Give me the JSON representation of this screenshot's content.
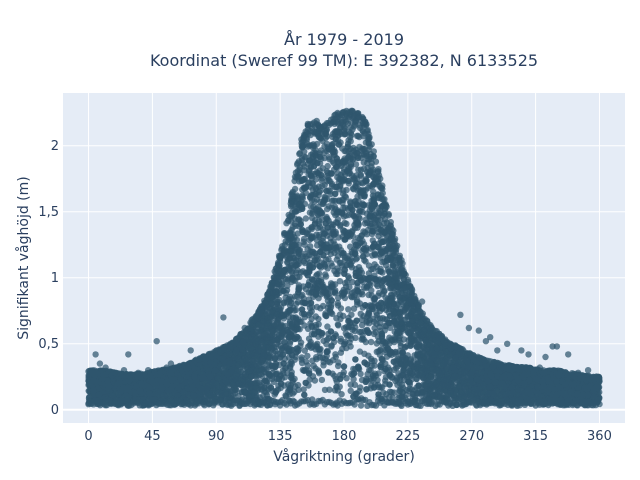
{
  "chart_data": {
    "type": "scatter",
    "title_line1": "År 1979 - 2019",
    "title_line2": "Koordinat (Sweref 99 TM): E 392382, N 6133525",
    "xlabel": "Vågriktning (grader)",
    "ylabel": "Signifikant våghöjd (m)",
    "xlim": [
      -18,
      378
    ],
    "ylim": [
      -0.1,
      2.4
    ],
    "xticks": [
      {
        "value": 0,
        "label": "0"
      },
      {
        "value": 45,
        "label": "45"
      },
      {
        "value": 90,
        "label": "90"
      },
      {
        "value": 135,
        "label": "135"
      },
      {
        "value": 180,
        "label": "180"
      },
      {
        "value": 225,
        "label": "225"
      },
      {
        "value": 270,
        "label": "270"
      },
      {
        "value": 315,
        "label": "315"
      },
      {
        "value": 360,
        "label": "360"
      }
    ],
    "yticks": [
      {
        "value": 0,
        "label": "0"
      },
      {
        "value": 0.5,
        "label": "0,5"
      },
      {
        "value": 1,
        "label": "1"
      },
      {
        "value": 1.5,
        "label": "1,5"
      },
      {
        "value": 2,
        "label": "2"
      }
    ],
    "grid": true,
    "marker_color": "#2f566d",
    "background_color": "#e5ecf6",
    "envelope": {
      "x": [
        0,
        10,
        20,
        30,
        40,
        50,
        60,
        70,
        80,
        90,
        100,
        110,
        120,
        125,
        130,
        135,
        140,
        145,
        150,
        155,
        160,
        165,
        170,
        175,
        180,
        185,
        190,
        195,
        200,
        205,
        210,
        215,
        220,
        225,
        230,
        235,
        240,
        250,
        260,
        270,
        280,
        290,
        300,
        310,
        320,
        330,
        340,
        350,
        360
      ],
      "y_max": [
        0.3,
        0.3,
        0.28,
        0.27,
        0.28,
        0.3,
        0.32,
        0.35,
        0.4,
        0.45,
        0.5,
        0.6,
        0.75,
        0.85,
        1.0,
        1.2,
        1.45,
        1.75,
        2.05,
        2.2,
        2.2,
        2.15,
        2.2,
        2.25,
        2.27,
        2.27,
        2.25,
        2.2,
        2.0,
        1.8,
        1.55,
        1.35,
        1.15,
        1.0,
        0.85,
        0.75,
        0.65,
        0.55,
        0.48,
        0.42,
        0.38,
        0.35,
        0.33,
        0.32,
        0.3,
        0.3,
        0.28,
        0.26,
        0.25
      ]
    },
    "outliers": [
      {
        "x": 3,
        "y": 0.28
      },
      {
        "x": 5,
        "y": 0.42
      },
      {
        "x": 8,
        "y": 0.35
      },
      {
        "x": 12,
        "y": 0.32
      },
      {
        "x": 25,
        "y": 0.3
      },
      {
        "x": 28,
        "y": 0.42
      },
      {
        "x": 35,
        "y": 0.28
      },
      {
        "x": 42,
        "y": 0.3
      },
      {
        "x": 48,
        "y": 0.52
      },
      {
        "x": 55,
        "y": 0.32
      },
      {
        "x": 58,
        "y": 0.35
      },
      {
        "x": 72,
        "y": 0.45
      },
      {
        "x": 78,
        "y": 0.38
      },
      {
        "x": 95,
        "y": 0.7
      },
      {
        "x": 100,
        "y": 0.5
      },
      {
        "x": 110,
        "y": 0.62
      },
      {
        "x": 115,
        "y": 0.68
      },
      {
        "x": 120,
        "y": 0.72
      },
      {
        "x": 235,
        "y": 0.82
      },
      {
        "x": 262,
        "y": 0.72
      },
      {
        "x": 268,
        "y": 0.62
      },
      {
        "x": 275,
        "y": 0.6
      },
      {
        "x": 280,
        "y": 0.52
      },
      {
        "x": 283,
        "y": 0.55
      },
      {
        "x": 288,
        "y": 0.45
      },
      {
        "x": 295,
        "y": 0.5
      },
      {
        "x": 305,
        "y": 0.45
      },
      {
        "x": 310,
        "y": 0.42
      },
      {
        "x": 318,
        "y": 0.32
      },
      {
        "x": 322,
        "y": 0.4
      },
      {
        "x": 327,
        "y": 0.48
      },
      {
        "x": 330,
        "y": 0.48
      },
      {
        "x": 338,
        "y": 0.42
      },
      {
        "x": 345,
        "y": 0.28
      },
      {
        "x": 352,
        "y": 0.3
      },
      {
        "x": 358,
        "y": 0.25
      }
    ]
  }
}
